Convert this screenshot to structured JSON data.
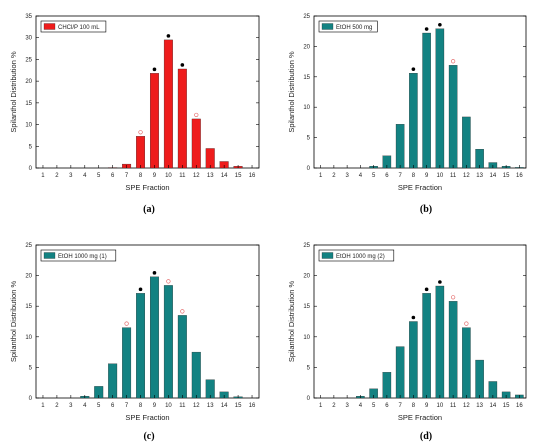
{
  "chart_data": [
    {
      "type": "bar",
      "panel_label": "(a)",
      "legend": [
        "CHCl/P 100 mL"
      ],
      "legend_color": "#ee1c1c",
      "xlabel": "SPE Fraction",
      "ylabel": "Spilanthol Distribution %",
      "categories": [
        "1",
        "2",
        "3",
        "4",
        "5",
        "6",
        "7",
        "8",
        "9",
        "10",
        "11",
        "12",
        "13",
        "14",
        "15",
        "16"
      ],
      "values": [
        0,
        0,
        0,
        0,
        0,
        0.1,
        0.9,
        7.3,
        21.8,
        29.5,
        22.8,
        11.3,
        4.5,
        1.5,
        0.4,
        0
      ],
      "ylim": [
        0,
        35
      ],
      "yticks": [
        "0",
        "5",
        "10",
        "15",
        "20",
        "25",
        "30",
        "35"
      ],
      "filled_dot_markers": [
        "9",
        "10",
        "11"
      ],
      "open_circle_markers": [
        "8",
        "12"
      ]
    },
    {
      "type": "bar",
      "panel_label": "(b)",
      "legend": [
        "EtOH 500 mg"
      ],
      "legend_color": "#138282",
      "xlabel": "SPE Fraction",
      "ylabel": "Spilanthol Distribution %",
      "categories": [
        "1",
        "2",
        "3",
        "4",
        "5",
        "6",
        "7",
        "8",
        "9",
        "10",
        "11",
        "12",
        "13",
        "14",
        "15",
        "16"
      ],
      "values": [
        0,
        0,
        0,
        0,
        0.3,
        2,
        7.2,
        15.6,
        22.2,
        22.9,
        16.9,
        8.4,
        3.1,
        0.9,
        0.3,
        0.1
      ],
      "ylim": [
        0,
        25
      ],
      "yticks": [
        "0",
        "5",
        "10",
        "15",
        "20",
        "25"
      ],
      "filled_dot_markers": [
        "8",
        "9",
        "10"
      ],
      "open_circle_markers": [
        "11"
      ]
    },
    {
      "type": "bar",
      "panel_label": "(c)",
      "legend": [
        "EtOH 1000 mg (1)"
      ],
      "legend_color": "#138282",
      "xlabel": "SPE Fraction",
      "ylabel": "Spilanthol Distribution %",
      "categories": [
        "1",
        "2",
        "3",
        "4",
        "5",
        "6",
        "7",
        "8",
        "9",
        "10",
        "11",
        "12",
        "13",
        "14",
        "15",
        "16"
      ],
      "values": [
        0,
        0,
        0,
        0.3,
        1.9,
        5.6,
        11.5,
        17.1,
        19.8,
        18.4,
        13.5,
        7.5,
        3,
        1,
        0.2,
        0
      ],
      "ylim": [
        0,
        25
      ],
      "yticks": [
        "0",
        "5",
        "10",
        "15",
        "20",
        "25"
      ],
      "filled_dot_markers": [
        "8",
        "9"
      ],
      "open_circle_markers": [
        "7",
        "10",
        "11"
      ]
    },
    {
      "type": "bar",
      "panel_label": "(d)",
      "legend": [
        "EtOH 1000 mg (2)"
      ],
      "legend_color": "#138282",
      "xlabel": "SPE Fraction",
      "ylabel": "Spilanthol Distribution %",
      "categories": [
        "1",
        "2",
        "3",
        "4",
        "5",
        "6",
        "7",
        "8",
        "9",
        "10",
        "11",
        "12",
        "13",
        "14",
        "15",
        "16"
      ],
      "values": [
        0,
        0,
        0,
        0.3,
        1.5,
        4.2,
        8.4,
        12.5,
        17.1,
        18.3,
        15.8,
        11.5,
        6.2,
        2.7,
        1,
        0.5
      ],
      "ylim": [
        0,
        25
      ],
      "yticks": [
        "0",
        "5",
        "10",
        "15",
        "20",
        "25"
      ],
      "filled_dot_markers": [
        "8",
        "9",
        "10"
      ],
      "open_circle_markers": [
        "11",
        "12"
      ]
    }
  ]
}
